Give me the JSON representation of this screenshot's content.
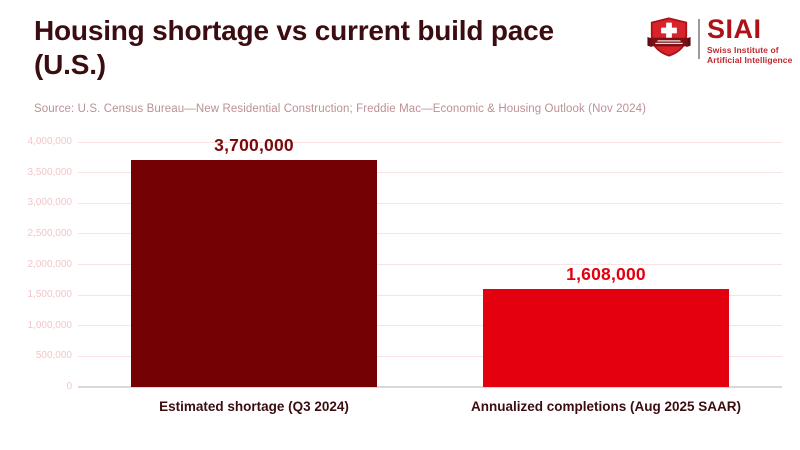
{
  "header": {
    "title_lines": [
      "Housing shortage vs current build pace",
      "(U.S.)"
    ],
    "source": "Source: U.S. Census Bureau—New Residential Construction; Freddie Mac—Economic & Housing Outlook (Nov 2024)"
  },
  "logo": {
    "acronym": "SIAI",
    "name_lines": [
      "Swiss Institute of",
      "Artificial Intelligence"
    ],
    "icon": "swiss-shield-icon",
    "colors": {
      "shield_red": "#d8232a",
      "shield_border": "#aa1219",
      "banner": "#7a1016",
      "text_red": "#ae1117"
    }
  },
  "chart_data": {
    "type": "bar",
    "categories": [
      "Estimated shortage (Q3 2024)",
      "Annualized completions (Aug 2025 SAAR)"
    ],
    "values": [
      3700000,
      1608000
    ],
    "value_labels": [
      "3,700,000",
      "1,608,000"
    ],
    "bar_colors": [
      "#740204",
      "#e3000f"
    ],
    "value_label_colors": [
      "#7a0a0c",
      "#e3000f"
    ],
    "title": "Housing shortage vs current build pace (U.S.)",
    "xlabel": "",
    "ylabel": "",
    "ylim": [
      0,
      4000000
    ],
    "yticks": [
      0,
      500000,
      1000000,
      1500000,
      2000000,
      2500000,
      3000000,
      3500000,
      4000000
    ],
    "ytick_labels": [
      "0",
      "500,000",
      "1,000,000",
      "1,500,000",
      "2,000,000",
      "2,500,000",
      "3,000,000",
      "3,500,000",
      "4,000,000"
    ],
    "grid": true,
    "legend": false,
    "style": {
      "gridline_color": "#f8e2e2",
      "zero_line_color": "#d9d9d9",
      "tick_label_color": "#f2c6c9",
      "background": "#ffffff"
    }
  }
}
